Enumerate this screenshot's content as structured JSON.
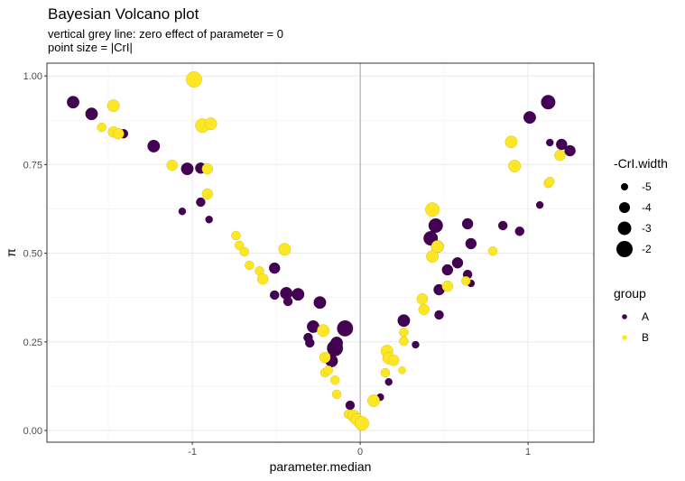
{
  "chart_data": {
    "type": "scatter",
    "title": "Bayesian Volcano plot",
    "subtitle": [
      "vertical grey line: zero effect of parameter = 0",
      "point size = |CrI|"
    ],
    "xlabel": "parameter.median",
    "ylabel": "π",
    "xlim": [
      -1.866,
      1.392
    ],
    "ylim": [
      -0.033,
      1.036
    ],
    "xticks": [
      {
        "v": -1,
        "label": "-1"
      },
      {
        "v": 0,
        "label": "0"
      },
      {
        "v": 1,
        "label": "1"
      }
    ],
    "yticks": [
      {
        "v": 0,
        "label": "0.00"
      },
      {
        "v": 0.25,
        "label": "0.25"
      },
      {
        "v": 0.5,
        "label": "0.50"
      },
      {
        "v": 0.75,
        "label": "0.75"
      },
      {
        "v": 1,
        "label": "1.00"
      }
    ],
    "grid": true,
    "reference_line": {
      "x": 0,
      "color": "#a0a0a0"
    },
    "legend_position": "right",
    "size_legend": {
      "title": "-CrI.width",
      "entries": [
        {
          "v": -5,
          "label": "-5"
        },
        {
          "v": -4,
          "label": "-4"
        },
        {
          "v": -3,
          "label": "-3"
        },
        {
          "v": -2,
          "label": "-2"
        }
      ]
    },
    "color_legend": {
      "title": "group",
      "entries": [
        {
          "name": "A",
          "color": "#440154"
        },
        {
          "name": "B",
          "color": "#fde725"
        }
      ]
    },
    "point_fields": [
      "x",
      "y",
      "neg_crl_width",
      "group"
    ],
    "points": [
      [
        -1.71,
        0.926,
        -3.5,
        "A"
      ],
      [
        -1.6,
        0.893,
        -3.5,
        "A"
      ],
      [
        -1.41,
        0.837,
        -4.5,
        "A"
      ],
      [
        -1.23,
        0.802,
        -3.5,
        "A"
      ],
      [
        -1.06,
        0.618,
        -5,
        "A"
      ],
      [
        -1.03,
        0.738,
        -3.5,
        "A"
      ],
      [
        -0.95,
        0.74,
        -4,
        "A"
      ],
      [
        -0.95,
        0.644,
        -4.5,
        "A"
      ],
      [
        -0.9,
        0.595,
        -5,
        "A"
      ],
      [
        -0.51,
        0.458,
        -4,
        "A"
      ],
      [
        -0.51,
        0.382,
        -4.5,
        "A"
      ],
      [
        -0.44,
        0.387,
        -3.5,
        "A"
      ],
      [
        -0.37,
        0.384,
        -3.5,
        "A"
      ],
      [
        -0.43,
        0.364,
        -4.5,
        "A"
      ],
      [
        -0.24,
        0.361,
        -3.5,
        "A"
      ],
      [
        -0.28,
        0.293,
        -3.5,
        "A"
      ],
      [
        -0.3,
        0.247,
        -4.5,
        "A"
      ],
      [
        -0.31,
        0.262,
        -4.5,
        "A"
      ],
      [
        -0.09,
        0.288,
        -2.2,
        "A"
      ],
      [
        -0.15,
        0.232,
        -2.2,
        "A"
      ],
      [
        -0.17,
        0.196,
        -3.5,
        "A"
      ],
      [
        -0.14,
        0.247,
        -3.5,
        "A"
      ],
      [
        -0.06,
        0.071,
        -4.5,
        "A"
      ],
      [
        0.12,
        0.094,
        -5,
        "A"
      ],
      [
        0.17,
        0.137,
        -5,
        "A"
      ],
      [
        0.26,
        0.31,
        -3.5,
        "A"
      ],
      [
        0.33,
        0.242,
        -5,
        "A"
      ],
      [
        0.47,
        0.326,
        -4.5,
        "A"
      ],
      [
        0.47,
        0.397,
        -4,
        "A"
      ],
      [
        0.45,
        0.578,
        -2.8,
        "A"
      ],
      [
        0.42,
        0.542,
        -2.8,
        "A"
      ],
      [
        0.46,
        0.519,
        -3.5,
        "A"
      ],
      [
        0.52,
        0.453,
        -4,
        "A"
      ],
      [
        0.58,
        0.473,
        -4,
        "A"
      ],
      [
        0.64,
        0.583,
        -4,
        "A"
      ],
      [
        0.66,
        0.527,
        -4,
        "A"
      ],
      [
        0.64,
        0.44,
        -4.5,
        "A"
      ],
      [
        0.66,
        0.415,
        -5,
        "A"
      ],
      [
        0.85,
        0.578,
        -4.5,
        "A"
      ],
      [
        0.95,
        0.562,
        -4.5,
        "A"
      ],
      [
        1.07,
        0.636,
        -5,
        "A"
      ],
      [
        1.01,
        0.883,
        -3.5,
        "A"
      ],
      [
        1.12,
        0.926,
        -2.8,
        "A"
      ],
      [
        1.2,
        0.807,
        -4,
        "A"
      ],
      [
        1.25,
        0.789,
        -4,
        "A"
      ],
      [
        1.13,
        0.812,
        -5,
        "A"
      ],
      [
        -0.99,
        0.99,
        -2.2,
        "B"
      ],
      [
        -1.47,
        0.916,
        -3.5,
        "B"
      ],
      [
        -1.54,
        0.855,
        -4.5,
        "B"
      ],
      [
        -1.47,
        0.842,
        -4,
        "B"
      ],
      [
        -1.44,
        0.837,
        -4,
        "B"
      ],
      [
        -1.12,
        0.748,
        -4,
        "B"
      ],
      [
        -0.94,
        0.86,
        -2.8,
        "B"
      ],
      [
        -0.89,
        0.865,
        -3.5,
        "B"
      ],
      [
        -0.91,
        0.738,
        -4,
        "B"
      ],
      [
        -0.91,
        0.667,
        -4,
        "B"
      ],
      [
        -0.74,
        0.55,
        -4.5,
        "B"
      ],
      [
        -0.72,
        0.522,
        -4.5,
        "B"
      ],
      [
        -0.69,
        0.504,
        -4.5,
        "B"
      ],
      [
        -0.45,
        0.511,
        -3.5,
        "B"
      ],
      [
        -0.66,
        0.466,
        -4.5,
        "B"
      ],
      [
        -0.6,
        0.45,
        -4.5,
        "B"
      ],
      [
        -0.58,
        0.427,
        -4,
        "B"
      ],
      [
        -0.22,
        0.282,
        -3.5,
        "B"
      ],
      [
        -0.21,
        0.206,
        -4,
        "B"
      ],
      [
        -0.21,
        0.163,
        -4.5,
        "B"
      ],
      [
        -0.19,
        0.17,
        -4.5,
        "B"
      ],
      [
        -0.15,
        0.142,
        -4.5,
        "B"
      ],
      [
        -0.14,
        0.102,
        -4.5,
        "B"
      ],
      [
        -0.07,
        0.046,
        -4.5,
        "B"
      ],
      [
        -0.04,
        0.041,
        -3.5,
        "B"
      ],
      [
        -0.02,
        0.031,
        -3.5,
        "B"
      ],
      [
        0.01,
        0.02,
        -2.8,
        "B"
      ],
      [
        0.08,
        0.084,
        -3.5,
        "B"
      ],
      [
        0.15,
        0.163,
        -4.5,
        "B"
      ],
      [
        0.16,
        0.224,
        -3.5,
        "B"
      ],
      [
        0.17,
        0.204,
        -3.5,
        "B"
      ],
      [
        0.2,
        0.198,
        -4,
        "B"
      ],
      [
        0.25,
        0.17,
        -5,
        "B"
      ],
      [
        0.26,
        0.277,
        -4.5,
        "B"
      ],
      [
        0.26,
        0.252,
        -4.5,
        "B"
      ],
      [
        0.37,
        0.371,
        -4,
        "B"
      ],
      [
        0.38,
        0.341,
        -4,
        "B"
      ],
      [
        0.43,
        0.623,
        -2.8,
        "B"
      ],
      [
        0.43,
        0.491,
        -3.5,
        "B"
      ],
      [
        0.46,
        0.519,
        -3.5,
        "B"
      ],
      [
        0.52,
        0.407,
        -4,
        "B"
      ],
      [
        0.63,
        0.422,
        -4.5,
        "B"
      ],
      [
        0.79,
        0.506,
        -4.5,
        "B"
      ],
      [
        0.9,
        0.814,
        -3.5,
        "B"
      ],
      [
        0.92,
        0.746,
        -3.5,
        "B"
      ],
      [
        1.12,
        0.697,
        -4.5,
        "B"
      ],
      [
        1.13,
        0.702,
        -4.5,
        "B"
      ],
      [
        1.19,
        0.776,
        -4,
        "B"
      ]
    ]
  }
}
